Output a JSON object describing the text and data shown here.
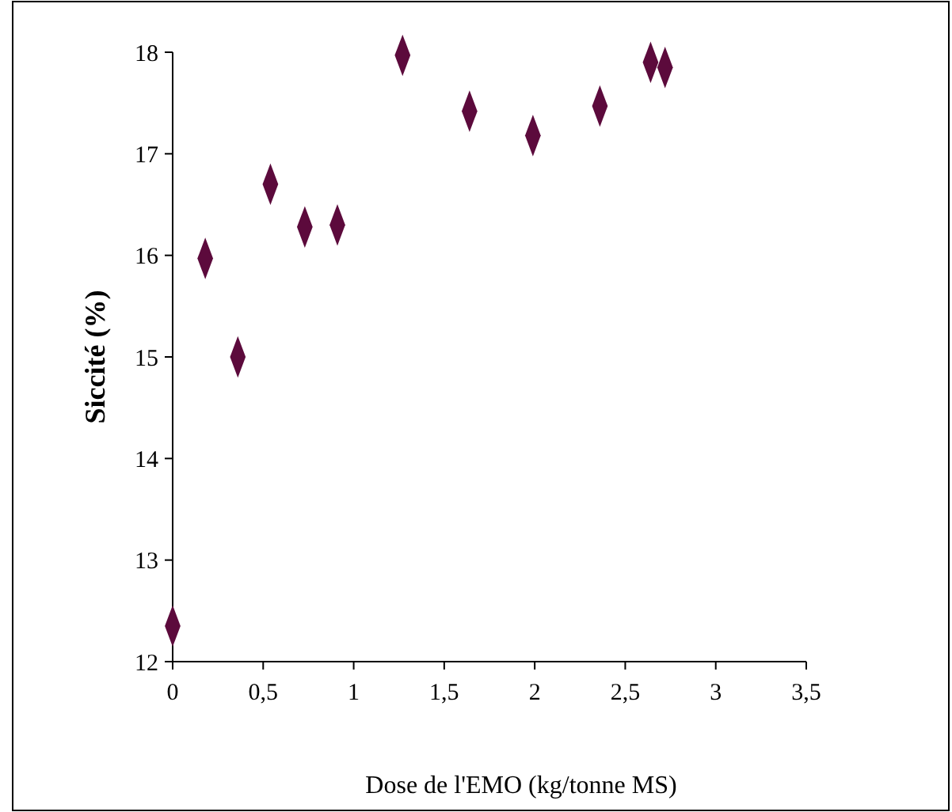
{
  "chart_data": {
    "type": "scatter",
    "xlabel": "Dose de l'EMO (kg/tonne MS)",
    "ylabel": "Siccité (%)",
    "x": [
      0,
      0.18,
      0.36,
      0.54,
      0.73,
      0.91,
      1.27,
      1.64,
      1.99,
      2.36,
      2.64,
      2.72
    ],
    "series": [
      {
        "color": "#5c0a3c",
        "values": [
          12.35,
          15.97,
          15.0,
          16.7,
          16.28,
          16.3,
          17.97,
          17.42,
          17.18,
          17.47,
          17.9,
          17.85
        ]
      }
    ],
    "marker": "diamond",
    "grid": false,
    "xlim": [
      0,
      3.5
    ],
    "xticks": [
      0,
      {
        "value": 0.5,
        "label": "0,5"
      },
      1,
      {
        "value": 1.5,
        "label": "1,5"
      },
      2,
      {
        "value": 2.5,
        "label": "2,5"
      },
      3,
      {
        "value": 3.5,
        "label": "3,5"
      }
    ],
    "ylim": [
      12,
      18
    ],
    "yticks": [
      12,
      13,
      14,
      15,
      16,
      17,
      18
    ]
  }
}
